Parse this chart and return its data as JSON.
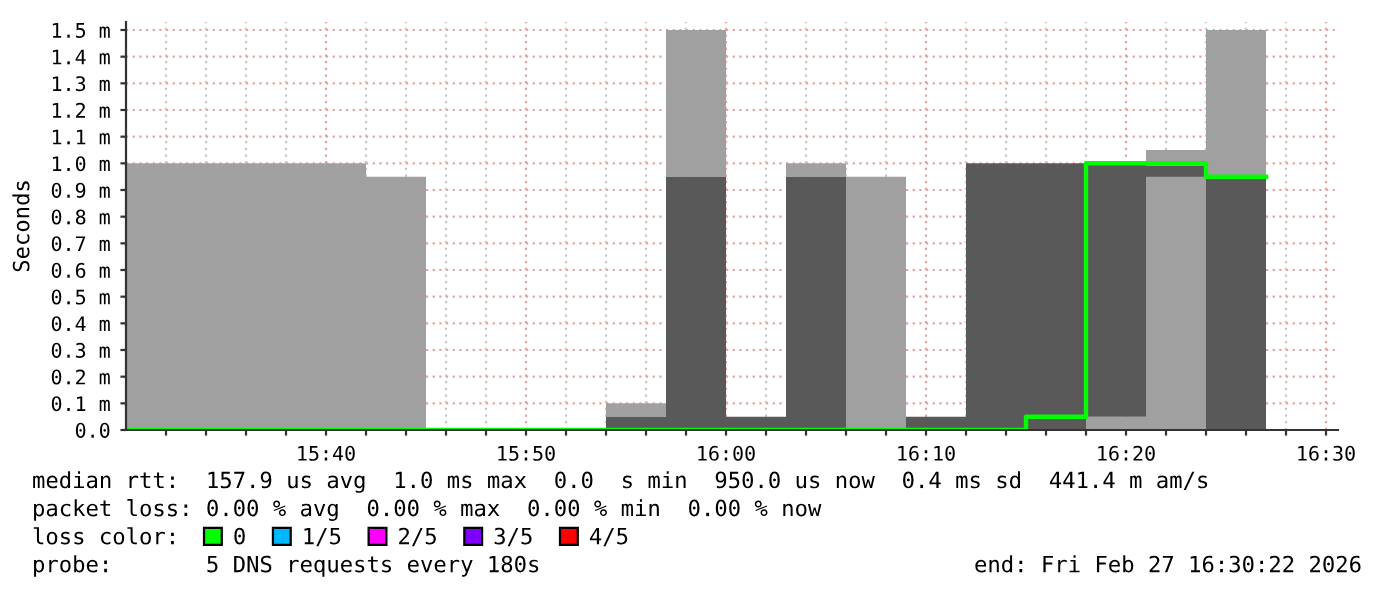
{
  "chart_data": {
    "type": "bar",
    "ylabel": "Seconds",
    "legend_title": "loss color:",
    "legend": "bottom",
    "grid": true,
    "x": [
      15.5,
      15.55,
      15.6,
      15.65,
      15.7,
      15.75,
      15.8,
      15.85,
      15.9,
      15.95,
      16.0,
      16.05,
      16.1,
      16.15,
      16.2,
      16.25,
      16.3,
      16.35,
      16.4
    ],
    "xlim": [
      15.5,
      16.51
    ],
    "xticks": [
      {
        "value": 15.533333,
        "label": null
      },
      {
        "value": 15.566667,
        "label": null
      },
      {
        "value": 15.6,
        "label": null
      },
      {
        "value": 15.633333,
        "label": null
      },
      {
        "value": 15.666667,
        "label": "15:40"
      },
      {
        "value": 15.7,
        "label": null
      },
      {
        "value": 15.733333,
        "label": null
      },
      {
        "value": 15.766667,
        "label": null
      },
      {
        "value": 15.8,
        "label": null
      },
      {
        "value": 15.833333,
        "label": "15:50"
      },
      {
        "value": 15.866667,
        "label": null
      },
      {
        "value": 15.9,
        "label": null
      },
      {
        "value": 15.933333,
        "label": null
      },
      {
        "value": 15.966667,
        "label": null
      },
      {
        "value": 16.0,
        "label": "16:00"
      },
      {
        "value": 16.033333,
        "label": null
      },
      {
        "value": 16.066667,
        "label": null
      },
      {
        "value": 16.1,
        "label": null
      },
      {
        "value": 16.133333,
        "label": null
      },
      {
        "value": 16.166667,
        "label": "16:10"
      },
      {
        "value": 16.2,
        "label": null
      },
      {
        "value": 16.233333,
        "label": null
      },
      {
        "value": 16.266667,
        "label": null
      },
      {
        "value": 16.3,
        "label": null
      },
      {
        "value": 16.333333,
        "label": "16:20"
      },
      {
        "value": 16.366667,
        "label": null
      },
      {
        "value": 16.4,
        "label": null
      },
      {
        "value": 16.433333,
        "label": null
      },
      {
        "value": 16.466667,
        "label": null
      },
      {
        "value": 16.5,
        "label": "16:30"
      }
    ],
    "ylim": [
      0,
      1.53
    ],
    "yticks": [
      {
        "value": 0,
        "label": "0.0"
      },
      {
        "value": 0.1,
        "label": "0.1 m"
      },
      {
        "value": 0.2,
        "label": "0.2 m"
      },
      {
        "value": 0.3,
        "label": "0.3 m"
      },
      {
        "value": 0.4,
        "label": "0.4 m"
      },
      {
        "value": 0.5,
        "label": "0.5 m"
      },
      {
        "value": 0.6,
        "label": "0.6 m"
      },
      {
        "value": 0.7,
        "label": "0.7 m"
      },
      {
        "value": 0.8,
        "label": "0.8 m"
      },
      {
        "value": 0.9,
        "label": "0.9 m"
      },
      {
        "value": 1.0,
        "label": "1.0 m"
      },
      {
        "value": 1.1,
        "label": "1.1 m"
      },
      {
        "value": 1.2,
        "label": "1.2 m"
      },
      {
        "value": 1.3,
        "label": "1.3 m"
      },
      {
        "value": 1.4,
        "label": "1.4 m"
      },
      {
        "value": 1.5,
        "label": "1.5 m"
      }
    ],
    "series": [
      {
        "color": "#a0a0a0",
        "base": [
          0,
          0,
          0,
          0,
          0,
          null,
          null,
          null,
          0.05,
          0.95,
          null,
          0.95,
          0,
          null,
          null,
          null,
          0,
          0,
          0.95
        ],
        "values": [
          1.0,
          1.0,
          1.0,
          1.0,
          0.95,
          null,
          null,
          null,
          0.05,
          0.55,
          null,
          0.05,
          0.95,
          null,
          null,
          null,
          0.05,
          1.05,
          0.55
        ]
      },
      {
        "color": "#595959",
        "base": [
          null,
          null,
          null,
          null,
          null,
          null,
          null,
          null,
          0,
          0,
          0,
          0,
          null,
          0,
          0,
          0,
          0.05,
          0.95,
          0
        ],
        "values": [
          null,
          null,
          null,
          null,
          null,
          null,
          null,
          null,
          0.05,
          0.95,
          0.05,
          0.95,
          null,
          0.05,
          1.0,
          1.0,
          0.95,
          0.04,
          0.95
        ]
      },
      {
        "type": "step",
        "name": "0",
        "color": "#00ff00",
        "x": [
          15.5,
          15.55,
          15.6,
          15.65,
          15.7,
          15.75,
          15.8,
          15.85,
          15.9,
          15.95,
          16.0,
          16.05,
          16.1,
          16.15,
          16.2,
          16.25,
          16.3,
          16.35,
          16.4,
          16.45
        ],
        "values": [
          0,
          0,
          0,
          0,
          0,
          0,
          0,
          0,
          0,
          0,
          0,
          0,
          0,
          0,
          0,
          0.05,
          1.0,
          1.0,
          0.95,
          0.95
        ]
      },
      {
        "type": "step",
        "name": "1/5",
        "color": "#00b8ff",
        "values": [
          null,
          null,
          null,
          null,
          null,
          null,
          null,
          null,
          null,
          null,
          null,
          null,
          null,
          null,
          null,
          null,
          null,
          null,
          null
        ]
      },
      {
        "type": "step",
        "name": "2/5",
        "color": "#ff00ff",
        "values": [
          null,
          null,
          null,
          null,
          null,
          null,
          null,
          null,
          null,
          null,
          null,
          null,
          null,
          null,
          null,
          null,
          null,
          null,
          null
        ]
      },
      {
        "type": "step",
        "name": "3/5",
        "color": "#7e00ff",
        "values": [
          null,
          null,
          null,
          null,
          null,
          null,
          null,
          null,
          null,
          null,
          null,
          null,
          null,
          null,
          null,
          null,
          null,
          null,
          null
        ]
      },
      {
        "type": "step",
        "name": "4/5",
        "color": "#ff0000",
        "values": [
          null,
          null,
          null,
          null,
          null,
          null,
          null,
          null,
          null,
          null,
          null,
          null,
          null,
          null,
          null,
          null,
          null,
          null,
          null
        ]
      }
    ],
    "annotations": [
      "median rtt:  157.9 us avg  1.0 ms max  0.0  s min  950.0 us now  0.4 ms sd  441.4 m am/s",
      "packet loss: 0.00 % avg  0.00 % max  0.00 % min  0.00 % now",
      "probe:       5 DNS requests every 180s",
      "end: Fri Feb 27 16:30:22 2026"
    ]
  }
}
